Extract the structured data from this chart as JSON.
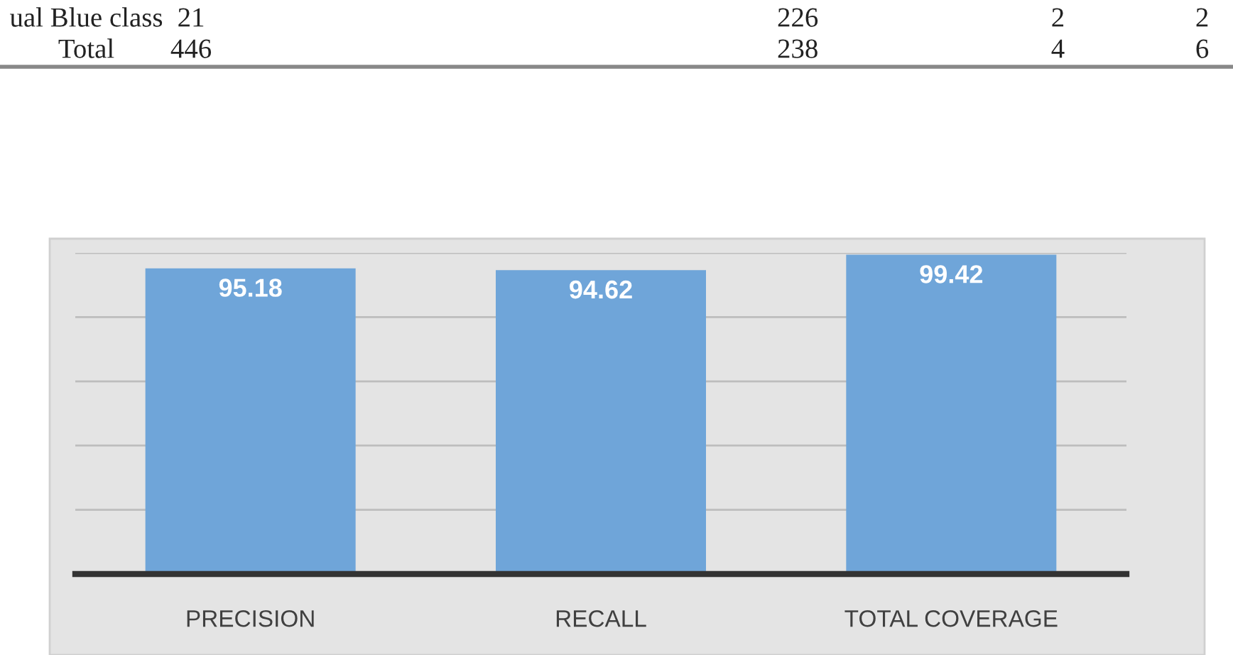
{
  "chart_data": {
    "type": "bar",
    "categories": [
      "PRECISION",
      "RECALL",
      "TOTAL COVERAGE"
    ],
    "values": [
      95.18,
      94.62,
      99.42
    ],
    "color": "#6fa5d9",
    "data_labels": true,
    "ylim": [
      0,
      100
    ],
    "yticks": [
      {
        "value": 0,
        "label": null
      },
      {
        "value": 20,
        "label": null
      },
      {
        "value": 40,
        "label": null
      },
      {
        "value": 60,
        "label": null
      },
      {
        "value": 80,
        "label": null
      },
      {
        "value": 100,
        "label": null
      }
    ],
    "tick_labels": "x",
    "grid": "y",
    "legend": false,
    "annotations": [
      "ual Blue class",
      "21",
      "226",
      "2",
      "2",
      "Total",
      "446",
      "238",
      "4",
      "6"
    ]
  }
}
